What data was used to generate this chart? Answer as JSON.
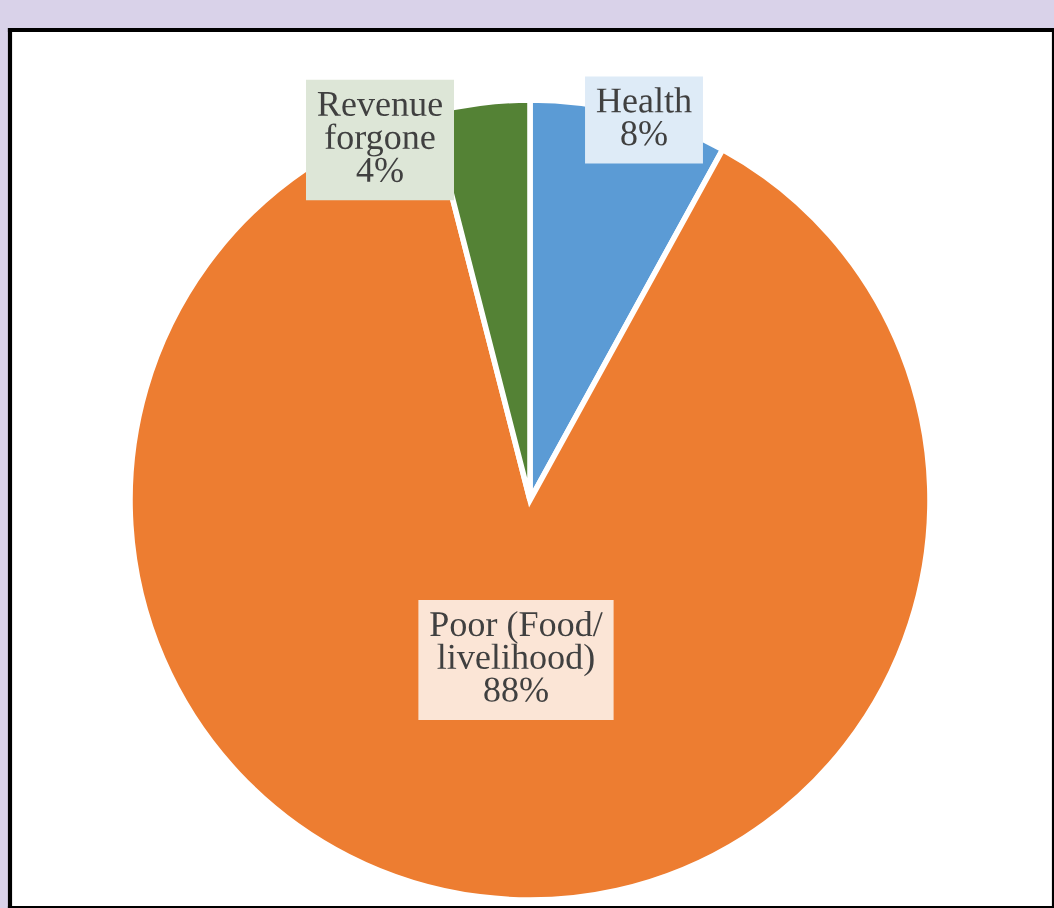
{
  "chart_data": {
    "type": "pie",
    "categories": [
      "Health",
      "Poor (Food/\nlivelihood)",
      "Revenue\nforgone"
    ],
    "values": [
      8,
      88,
      4
    ],
    "colors": [
      "#5b9bd5",
      "#ed7d31",
      "#548235"
    ],
    "value_labels": [
      "8%",
      "88%",
      "4%"
    ],
    "legend": false
  }
}
